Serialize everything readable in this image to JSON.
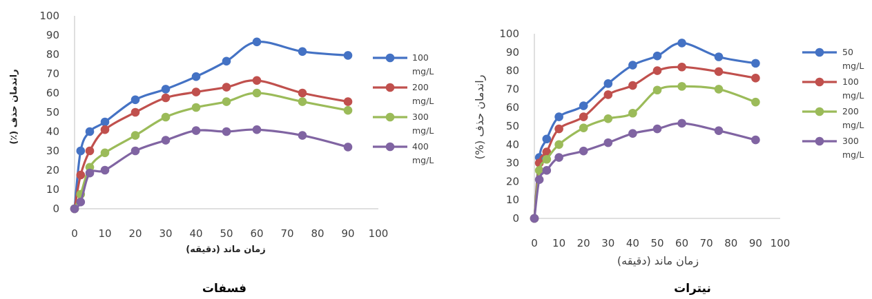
{
  "colors": {
    "s1": "#4472C4",
    "s2": "#C0504D",
    "s3": "#9BBB59",
    "s4": "#8064A2",
    "axis": "#BFBFBF"
  },
  "chart_data": [
    {
      "type": "line",
      "caption": "فسفات",
      "xlabel": "زمان ماند (دقیقه)",
      "ylabel": "راندمان حذف (٪)",
      "xlim": [
        0,
        100
      ],
      "ylim": [
        0,
        100
      ],
      "xticks": [
        "0",
        "10",
        "20",
        "30",
        "40",
        "50",
        "60",
        "70",
        "80",
        "90",
        "100"
      ],
      "yticks": [
        "0",
        "10",
        "20",
        "30",
        "40",
        "50",
        "60",
        "70",
        "80",
        "90",
        "100"
      ],
      "legend_position": "right",
      "x": [
        0,
        2,
        5,
        10,
        20,
        30,
        40,
        50,
        60,
        75,
        90
      ],
      "series": [
        {
          "name": "100 mg/L",
          "name_lines": [
            "100",
            "mg/L"
          ],
          "color_key": "s1",
          "values": [
            0,
            30,
            40,
            45,
            56.5,
            62,
            68.5,
            76.5,
            86.5,
            81.5,
            79.5
          ]
        },
        {
          "name": "200 mg/L",
          "name_lines": [
            "200",
            "mg/L"
          ],
          "color_key": "s2",
          "values": [
            0,
            17.5,
            30,
            41,
            50,
            57.5,
            60.5,
            63,
            66.5,
            60,
            55.5
          ]
        },
        {
          "name": "300 mg/L",
          "name_lines": [
            "300",
            "mg/L"
          ],
          "color_key": "s3",
          "values": [
            0,
            7.5,
            21.5,
            29,
            38,
            47.5,
            52.5,
            55.5,
            60,
            55.5,
            51
          ]
        },
        {
          "name": "400 mg/L",
          "name_lines": [
            "400",
            "mg/L"
          ],
          "color_key": "s4",
          "values": [
            0,
            3.5,
            18.5,
            20,
            30,
            35.5,
            40.5,
            40,
            41,
            38,
            32
          ]
        }
      ]
    },
    {
      "type": "line",
      "caption": "نیترات",
      "xlabel": "زمان ماند (دقیقه)",
      "ylabel": "راندمان حذف (%)",
      "xlim": [
        0,
        100
      ],
      "ylim": [
        0,
        100
      ],
      "xticks": [
        "0",
        "10",
        "20",
        "30",
        "40",
        "50",
        "60",
        "70",
        "80",
        "90",
        "100"
      ],
      "yticks": [
        "0",
        "10",
        "20",
        "30",
        "40",
        "50",
        "60",
        "70",
        "80",
        "90",
        "100"
      ],
      "legend_position": "right",
      "x": [
        0,
        2,
        5,
        10,
        20,
        30,
        40,
        50,
        60,
        75,
        90
      ],
      "series": [
        {
          "name": "50 mg/L",
          "name_lines": [
            "50",
            "mg/L"
          ],
          "color_key": "s1",
          "values": [
            0,
            33,
            43,
            55,
            61,
            73,
            83,
            88,
            95,
            87.5,
            84
          ]
        },
        {
          "name": "100 mg/L",
          "name_lines": [
            "100",
            "mg/L"
          ],
          "color_key": "s2",
          "values": [
            0,
            30,
            36,
            48.5,
            55,
            67,
            72,
            80,
            82,
            79.5,
            76
          ]
        },
        {
          "name": "200 mg/L",
          "name_lines": [
            "200",
            "mg/L"
          ],
          "color_key": "s3",
          "values": [
            0,
            26,
            32,
            40,
            49,
            54,
            57,
            69.5,
            71.5,
            70,
            63
          ]
        },
        {
          "name": "300 mg/L",
          "name_lines": [
            "300",
            "mg/L"
          ],
          "color_key": "s4",
          "values": [
            0,
            21,
            26,
            33,
            36.5,
            41,
            46,
            48.5,
            51.5,
            47.5,
            42.5
          ]
        }
      ]
    }
  ]
}
